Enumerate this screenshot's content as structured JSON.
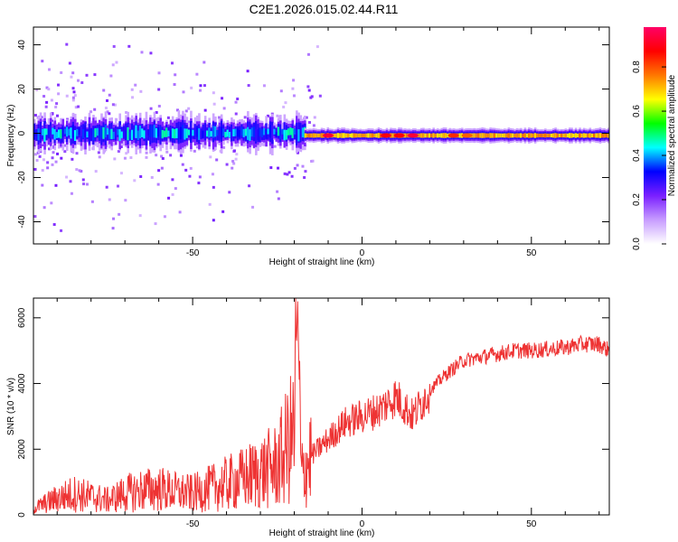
{
  "page": {
    "title": "C2E1.2026.015.02.44.R11"
  },
  "chart_data": [
    {
      "type": "heatmap",
      "xlabel": "Height of straight line (km)",
      "ylabel": "Frequency (Hz)",
      "xlim": [
        -97,
        73
      ],
      "ylim": [
        -50,
        48
      ],
      "x_ticks": [
        -50,
        0,
        50
      ],
      "y_ticks": [
        -40,
        -20,
        0,
        20,
        40
      ],
      "grid": false,
      "colorbar": {
        "label": "Normalized spectral amplitude",
        "range": [
          0,
          0.98
        ],
        "ticks": [
          0.0,
          0.2,
          0.4,
          0.6,
          0.8
        ],
        "colormap": [
          "#ffffff",
          "#c79cff",
          "#7a1fff",
          "#0000ff",
          "#00ffff",
          "#00ff00",
          "#ffff00",
          "#ff7700",
          "#ff0000",
          "#ff0066"
        ]
      },
      "bands": [
        {
          "x_range": [
            -97,
            -17
          ],
          "center_hz": 0,
          "halfwidth_hz": 4,
          "amplitude": 0.35
        },
        {
          "x_range": [
            -17,
            73
          ],
          "center_hz": -1,
          "halfwidth_hz": 2,
          "amplitude": 0.75
        }
      ],
      "peaks": [
        {
          "x": -10,
          "amplitude": 0.95
        },
        {
          "x": 7,
          "amplitude": 0.9
        },
        {
          "x": 11,
          "amplitude": 0.9
        },
        {
          "x": 15,
          "amplitude": 0.95
        },
        {
          "x": 27,
          "amplitude": 0.85
        },
        {
          "x": 31,
          "amplitude": 0.8
        }
      ]
    },
    {
      "type": "line",
      "xlabel": "Height of straight line (km)",
      "ylabel": "SNR (10 * v/v)",
      "xlim": [
        -97,
        73
      ],
      "ylim": [
        0,
        6600
      ],
      "x_ticks": [
        -50,
        0,
        50
      ],
      "y_ticks": [
        0,
        2000,
        4000,
        6000
      ],
      "grid": false,
      "series": [
        {
          "color": "#ee3333",
          "x": [
            -97,
            -90,
            -85,
            -80,
            -75,
            -70,
            -65,
            -60,
            -55,
            -50,
            -45,
            -40,
            -35,
            -30,
            -25,
            -20,
            -19,
            -18,
            -15,
            -10,
            -5,
            0,
            5,
            10,
            15,
            20,
            25,
            30,
            35,
            40,
            45,
            50,
            55,
            60,
            65,
            70,
            73
          ],
          "y": [
            200,
            500,
            650,
            550,
            450,
            650,
            750,
            800,
            700,
            650,
            800,
            950,
            1100,
            1300,
            1500,
            2500,
            6500,
            1200,
            1800,
            2300,
            2800,
            3000,
            3200,
            3600,
            3000,
            3800,
            4300,
            4700,
            4800,
            4900,
            5000,
            5000,
            5050,
            5100,
            5200,
            5200,
            5000
          ]
        }
      ]
    }
  ]
}
